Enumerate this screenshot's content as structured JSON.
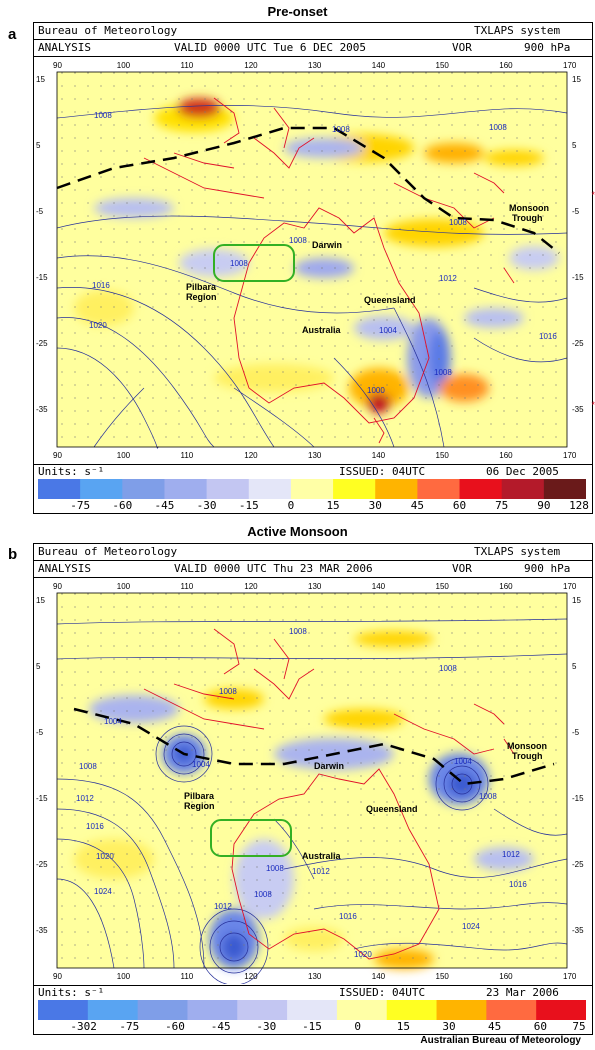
{
  "panels": [
    {
      "letter": "a",
      "title": "Pre-onset",
      "header": {
        "agency": "Bureau of Meteorology",
        "system": "TXLAPS system",
        "analysis": "ANALYSIS",
        "valid": "VALID  0000 UTC  Tue  6 DEC 2005",
        "field": "VOR",
        "level": "900 hPa"
      },
      "units": "Units: s⁻¹",
      "issued": "ISSUED: 04UTC",
      "issued_date": "06 Dec 2005",
      "colorbar_labels": [
        "-75",
        "-60",
        "-45",
        "-30",
        "-15",
        "0",
        "15",
        "30",
        "45",
        "60",
        "75",
        "90",
        "128"
      ],
      "colorbar_colors": [
        "#4a78e6",
        "#59a4f2",
        "#7f9ee8",
        "#9faeee",
        "#c3c6f2",
        "#e4e6f8",
        "#ffffa6",
        "#ffff22",
        "#ffb400",
        "#ff6a40",
        "#e8101c",
        "#b41a2a",
        "#6a1a1a"
      ],
      "labels": {
        "darwin": "Darwin",
        "pilbara1": "Pilbara",
        "pilbara2": "Region",
        "queensland": "Queensland",
        "australia": "Australia",
        "trough1": "Monsoon",
        "trough2": "Trough"
      },
      "isobars": [
        "1008",
        "1008",
        "1008",
        "1008",
        "1008",
        "1016",
        "1020",
        "1012",
        "1004",
        "1016",
        "1008",
        "1000"
      ]
    },
    {
      "letter": "b",
      "title": "Active Monsoon",
      "header": {
        "agency": "Bureau of Meteorology",
        "system": "TXLAPS system",
        "analysis": "ANALYSIS",
        "valid": "VALID  0000 UTC  Thu 23 MAR 2006",
        "field": "VOR",
        "level": "900 hPa"
      },
      "units": "Units: s⁻¹",
      "issued": "ISSUED: 04UTC",
      "issued_date": "23 Mar 2006",
      "colorbar_labels": [
        "-302",
        "-75",
        "-60",
        "-45",
        "-30",
        "-15",
        "0",
        "15",
        "30",
        "45",
        "60",
        "75"
      ],
      "colorbar_colors": [
        "#4a78e6",
        "#59a4f2",
        "#7f9ee8",
        "#9faeee",
        "#c3c6f2",
        "#e4e6f8",
        "#ffffa6",
        "#ffff22",
        "#ffb400",
        "#ff6a40",
        "#e8101c"
      ],
      "labels": {
        "darwin": "Darwin",
        "pilbara1": "Pilbara",
        "pilbara2": "Region",
        "queensland": "Queensland",
        "australia": "Australia",
        "trough1": "Monsoon",
        "trough2": "Trough"
      },
      "isobars": [
        "1008",
        "1008",
        "1008",
        "1004",
        "1008",
        "1004",
        "1012",
        "1016",
        "1020",
        "1024",
        "1012",
        "1008",
        "1008",
        "1012",
        "1016",
        "1020",
        "1024",
        "1012",
        "1016",
        "1008",
        "1004"
      ]
    }
  ],
  "axes": {
    "lon_ticks": [
      "90",
      "100",
      "110",
      "120",
      "130",
      "140",
      "150",
      "160",
      "170"
    ],
    "lat_ticks": [
      "15",
      "5",
      "-5",
      "-15",
      "-25",
      "-35"
    ]
  },
  "side_marks": [
    "*",
    "*"
  ],
  "footer": "Australian Bureau of Meteorology"
}
